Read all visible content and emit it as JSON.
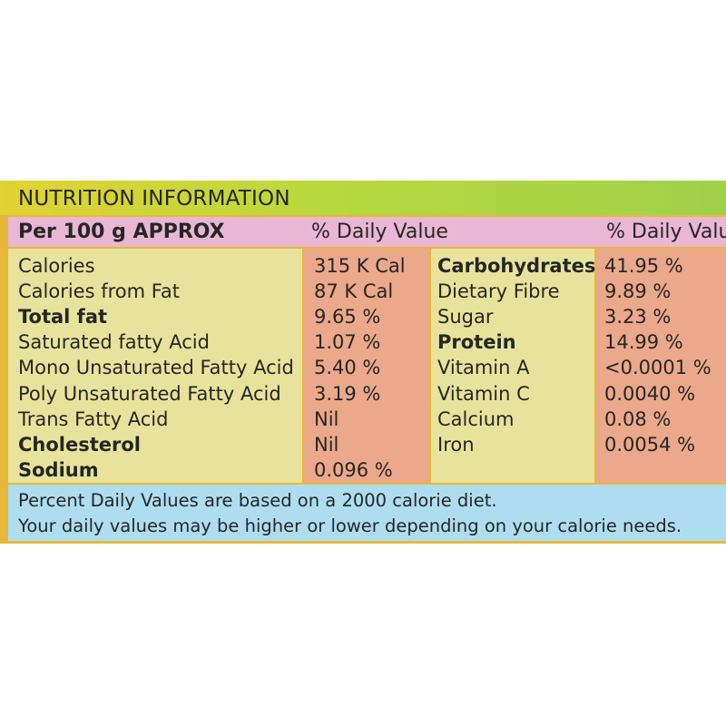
{
  "panel": {
    "title": "NUTRITION INFORMATION",
    "header": {
      "per_label": "Per 100 g APPROX",
      "daily_value_1": "% Daily Value",
      "daily_value_2": "% Daily Value"
    },
    "left_rows": [
      {
        "name": "Calories",
        "value": "315 K Cal",
        "bold": false
      },
      {
        "name": "Calories from Fat",
        "value": "87 K Cal",
        "bold": false
      },
      {
        "name": "Total fat",
        "value": "9.65 %",
        "bold": true
      },
      {
        "name": "Saturated fatty Acid",
        "value": "1.07 %",
        "bold": false
      },
      {
        "name": "Mono Unsaturated Fatty Acid",
        "value": "5.40 %",
        "bold": false
      },
      {
        "name": "Poly Unsaturated Fatty Acid",
        "value": "3.19 %",
        "bold": false
      },
      {
        "name": "Trans Fatty Acid",
        "value": "Nil",
        "bold": false
      },
      {
        "name": "Cholesterol",
        "value": "Nil",
        "bold": true
      },
      {
        "name": "Sodium",
        "value": "0.096 %",
        "bold": true
      }
    ],
    "right_rows": [
      {
        "name": "Carbohydrates",
        "value": "41.95 %",
        "bold": true
      },
      {
        "name": "Dietary Fibre",
        "value": "9.89 %",
        "bold": false
      },
      {
        "name": "Sugar",
        "value": "3.23 %",
        "bold": false
      },
      {
        "name": "Protein",
        "value": "14.99 %",
        "bold": true
      },
      {
        "name": "Vitamin A",
        "value": "<0.0001 %",
        "bold": false
      },
      {
        "name": "Vitamin C",
        "value": "0.0040 %",
        "bold": false
      },
      {
        "name": "Calcium",
        "value": "0.08 %",
        "bold": false
      },
      {
        "name": "Iron",
        "value": "0.0054 %",
        "bold": false
      }
    ],
    "footer": {
      "line1": "Percent Daily Values are based on a 2000 calorie diet.",
      "line2": "Your daily values may be higher or lower depending on your calorie needs."
    }
  }
}
